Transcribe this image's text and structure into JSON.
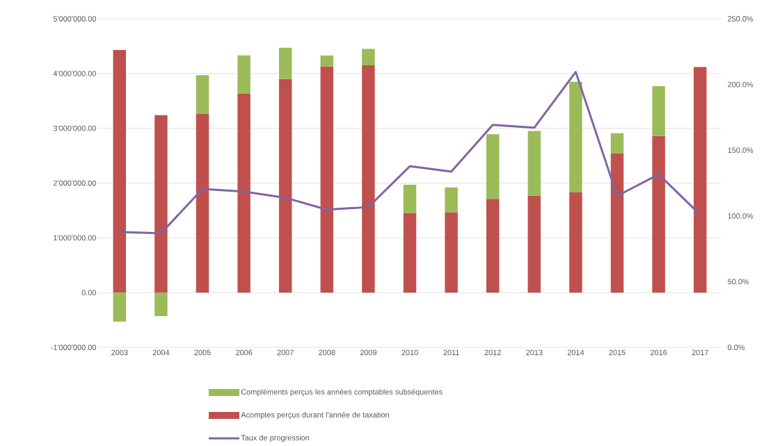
{
  "chart_data": {
    "type": "bar",
    "stacked": true,
    "categories": [
      "2003",
      "2004",
      "2005",
      "2006",
      "2007",
      "2008",
      "2009",
      "2010",
      "2011",
      "2012",
      "2013",
      "2014",
      "2015",
      "2016",
      "2017"
    ],
    "series": [
      {
        "name": "Acomptes perçus durant l'année de taxation",
        "color": "#c0504d",
        "values": [
          4430000,
          3240000,
          3270000,
          3630000,
          3900000,
          4130000,
          4150000,
          1450000,
          1460000,
          1710000,
          1770000,
          1830000,
          2540000,
          2860000,
          4120000
        ]
      },
      {
        "name": "Compléments perçus les années comptables subséquentes",
        "color": "#9bbb59",
        "values": [
          -530000,
          -430000,
          700000,
          700000,
          570000,
          200000,
          300000,
          520000,
          460000,
          1180000,
          1180000,
          2020000,
          370000,
          910000,
          0
        ]
      },
      {
        "name": "Taux de progression",
        "type": "line",
        "axis": "y2",
        "color": "#8064a2",
        "values": [
          87.7,
          86.8,
          120.5,
          118.5,
          113.8,
          104.8,
          106.7,
          137.8,
          133.7,
          169.3,
          167.1,
          209.5,
          115.2,
          131.6,
          101.0
        ]
      }
    ],
    "ylim": [
      -1000000,
      5000000
    ],
    "yticks": [
      {
        "value": -1000000,
        "label": "-1'000'000.00"
      },
      {
        "value": 0,
        "label": "0.00"
      },
      {
        "value": 1000000,
        "label": "1'000'000.00"
      },
      {
        "value": 2000000,
        "label": "2'000'000.00"
      },
      {
        "value": 3000000,
        "label": "3'000'000.00"
      },
      {
        "value": 4000000,
        "label": "4'000'000.00"
      },
      {
        "value": 5000000,
        "label": "5'000'000.00"
      }
    ],
    "y2lim": [
      0,
      250
    ],
    "y2ticks": [
      {
        "value": 0,
        "label": "0.0%"
      },
      {
        "value": 50,
        "label": "50.0%"
      },
      {
        "value": 100,
        "label": "100.0%"
      },
      {
        "value": 150,
        "label": "150.0%"
      },
      {
        "value": 200,
        "label": "200.0%"
      },
      {
        "value": 250,
        "label": "250.0%"
      }
    ],
    "grid": "y",
    "legend": "bottom"
  }
}
